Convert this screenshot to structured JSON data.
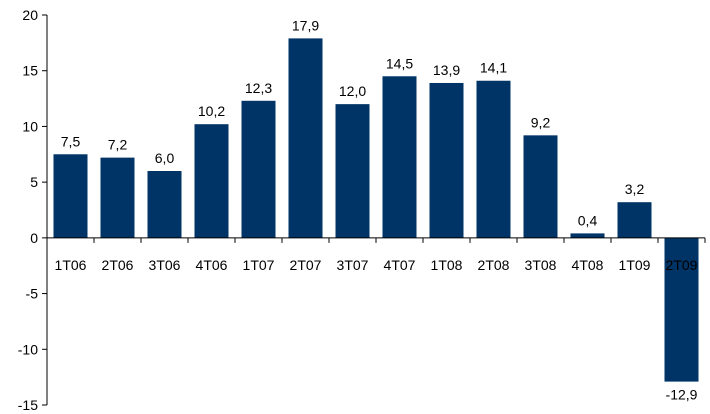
{
  "chart_data": {
    "type": "bar",
    "categories": [
      "1T06",
      "2T06",
      "3T06",
      "4T06",
      "1T07",
      "2T07",
      "3T07",
      "4T07",
      "1T08",
      "2T08",
      "3T08",
      "4T08",
      "1T09",
      "2T09"
    ],
    "values": [
      7.5,
      7.2,
      6.0,
      10.2,
      12.3,
      17.9,
      12.0,
      14.5,
      13.9,
      14.1,
      9.2,
      0.4,
      3.2,
      -12.9
    ],
    "data_labels": [
      "7,5",
      "7,2",
      "6,0",
      "10,2",
      "12,3",
      "17,9",
      "12,0",
      "14,5",
      "13,9",
      "14,1",
      "9,2",
      "0,4",
      "3,2",
      "-12,9"
    ],
    "y_ticks": [
      20,
      15,
      10,
      5,
      0,
      -5,
      -10,
      -15
    ],
    "y_tick_labels": [
      "20",
      "15",
      "10",
      "5",
      "0",
      "-5",
      "-10",
      "-15"
    ],
    "ylim": [
      -15,
      20
    ],
    "title": "",
    "xlabel": "",
    "ylabel": "",
    "grid": false,
    "legend": "none",
    "colors": {
      "bar": "#003366",
      "axis": "#000000"
    }
  }
}
